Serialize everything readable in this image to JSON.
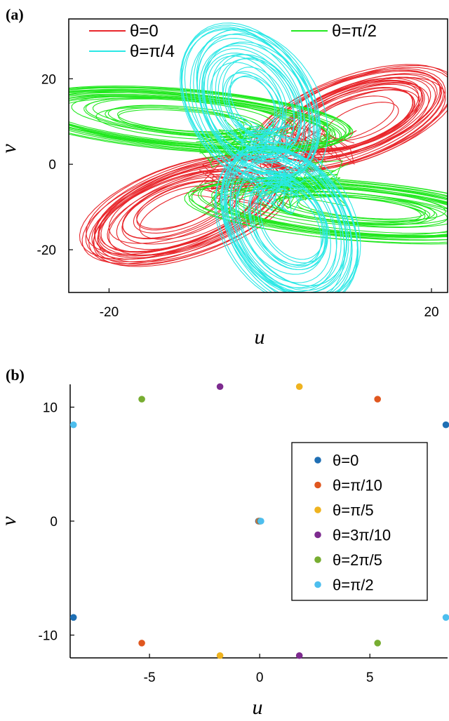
{
  "chart_data": [
    {
      "panel_label": "(a)",
      "type": "line",
      "xlabel": "u",
      "ylabel": "v",
      "xlim": [
        -25,
        22
      ],
      "ylim": [
        -30,
        34
      ],
      "xticks": [
        -20,
        20
      ],
      "xtick_labels": [
        "-20",
        "20"
      ],
      "yticks": [
        -20,
        0,
        20
      ],
      "ytick_labels": [
        "-20",
        "0",
        "20"
      ],
      "legend_position": "top",
      "series": [
        {
          "name": "θ=0",
          "color": "#e8262b",
          "rotation_deg": 45,
          "lobe_center": [
            10.5,
            10.5
          ],
          "semi_major": 16,
          "semi_minor": 8.5
        },
        {
          "name": "θ=π/2",
          "color": "#22e81f",
          "rotation_deg": -10,
          "lobe_center": [
            10.5,
            -10.5
          ],
          "semi_major": 21,
          "semi_minor": 6.5
        },
        {
          "name": "θ=π/4",
          "color": "#2be8e6",
          "rotation_deg": 100,
          "lobe_center": [
            -2,
            14
          ],
          "semi_major": 19,
          "semi_minor": 8
        }
      ]
    },
    {
      "panel_label": "(b)",
      "type": "scatter",
      "xlabel": "u",
      "ylabel": "v",
      "xlim": [
        -8.6,
        8.4
      ],
      "ylim": [
        -12,
        12
      ],
      "xticks": [
        -5,
        0,
        5
      ],
      "xtick_labels": [
        "-5",
        "0",
        "5"
      ],
      "yticks": [
        -10,
        0,
        10
      ],
      "ytick_labels": [
        "-10",
        "0",
        "10"
      ],
      "legend_position": "right",
      "series": [
        {
          "name": "θ=0",
          "color": "#1f6fb4",
          "points": [
            [
              8.45,
              8.45
            ],
            [
              -8.45,
              -8.45
            ],
            [
              0,
              0
            ]
          ]
        },
        {
          "name": "θ=π/10",
          "color": "#e0571f",
          "points": [
            [
              5.35,
              10.7
            ],
            [
              -5.35,
              -10.7
            ],
            [
              0,
              0
            ]
          ]
        },
        {
          "name": "θ=π/5",
          "color": "#efb31f",
          "points": [
            [
              1.8,
              11.8
            ],
            [
              -1.8,
              -11.8
            ],
            [
              0,
              0
            ]
          ]
        },
        {
          "name": "θ=3π/10",
          "color": "#7d2b8f",
          "points": [
            [
              -1.8,
              11.8
            ],
            [
              1.8,
              -11.8
            ],
            [
              0,
              0
            ]
          ]
        },
        {
          "name": "θ=2π/5",
          "color": "#77ad31",
          "points": [
            [
              -5.35,
              10.7
            ],
            [
              5.35,
              -10.7
            ],
            [
              0,
              0
            ]
          ]
        },
        {
          "name": "θ=π/2",
          "color": "#4dbeee",
          "points": [
            [
              -8.45,
              8.45
            ],
            [
              8.45,
              -8.45
            ],
            [
              0,
              0
            ]
          ]
        }
      ]
    }
  ]
}
